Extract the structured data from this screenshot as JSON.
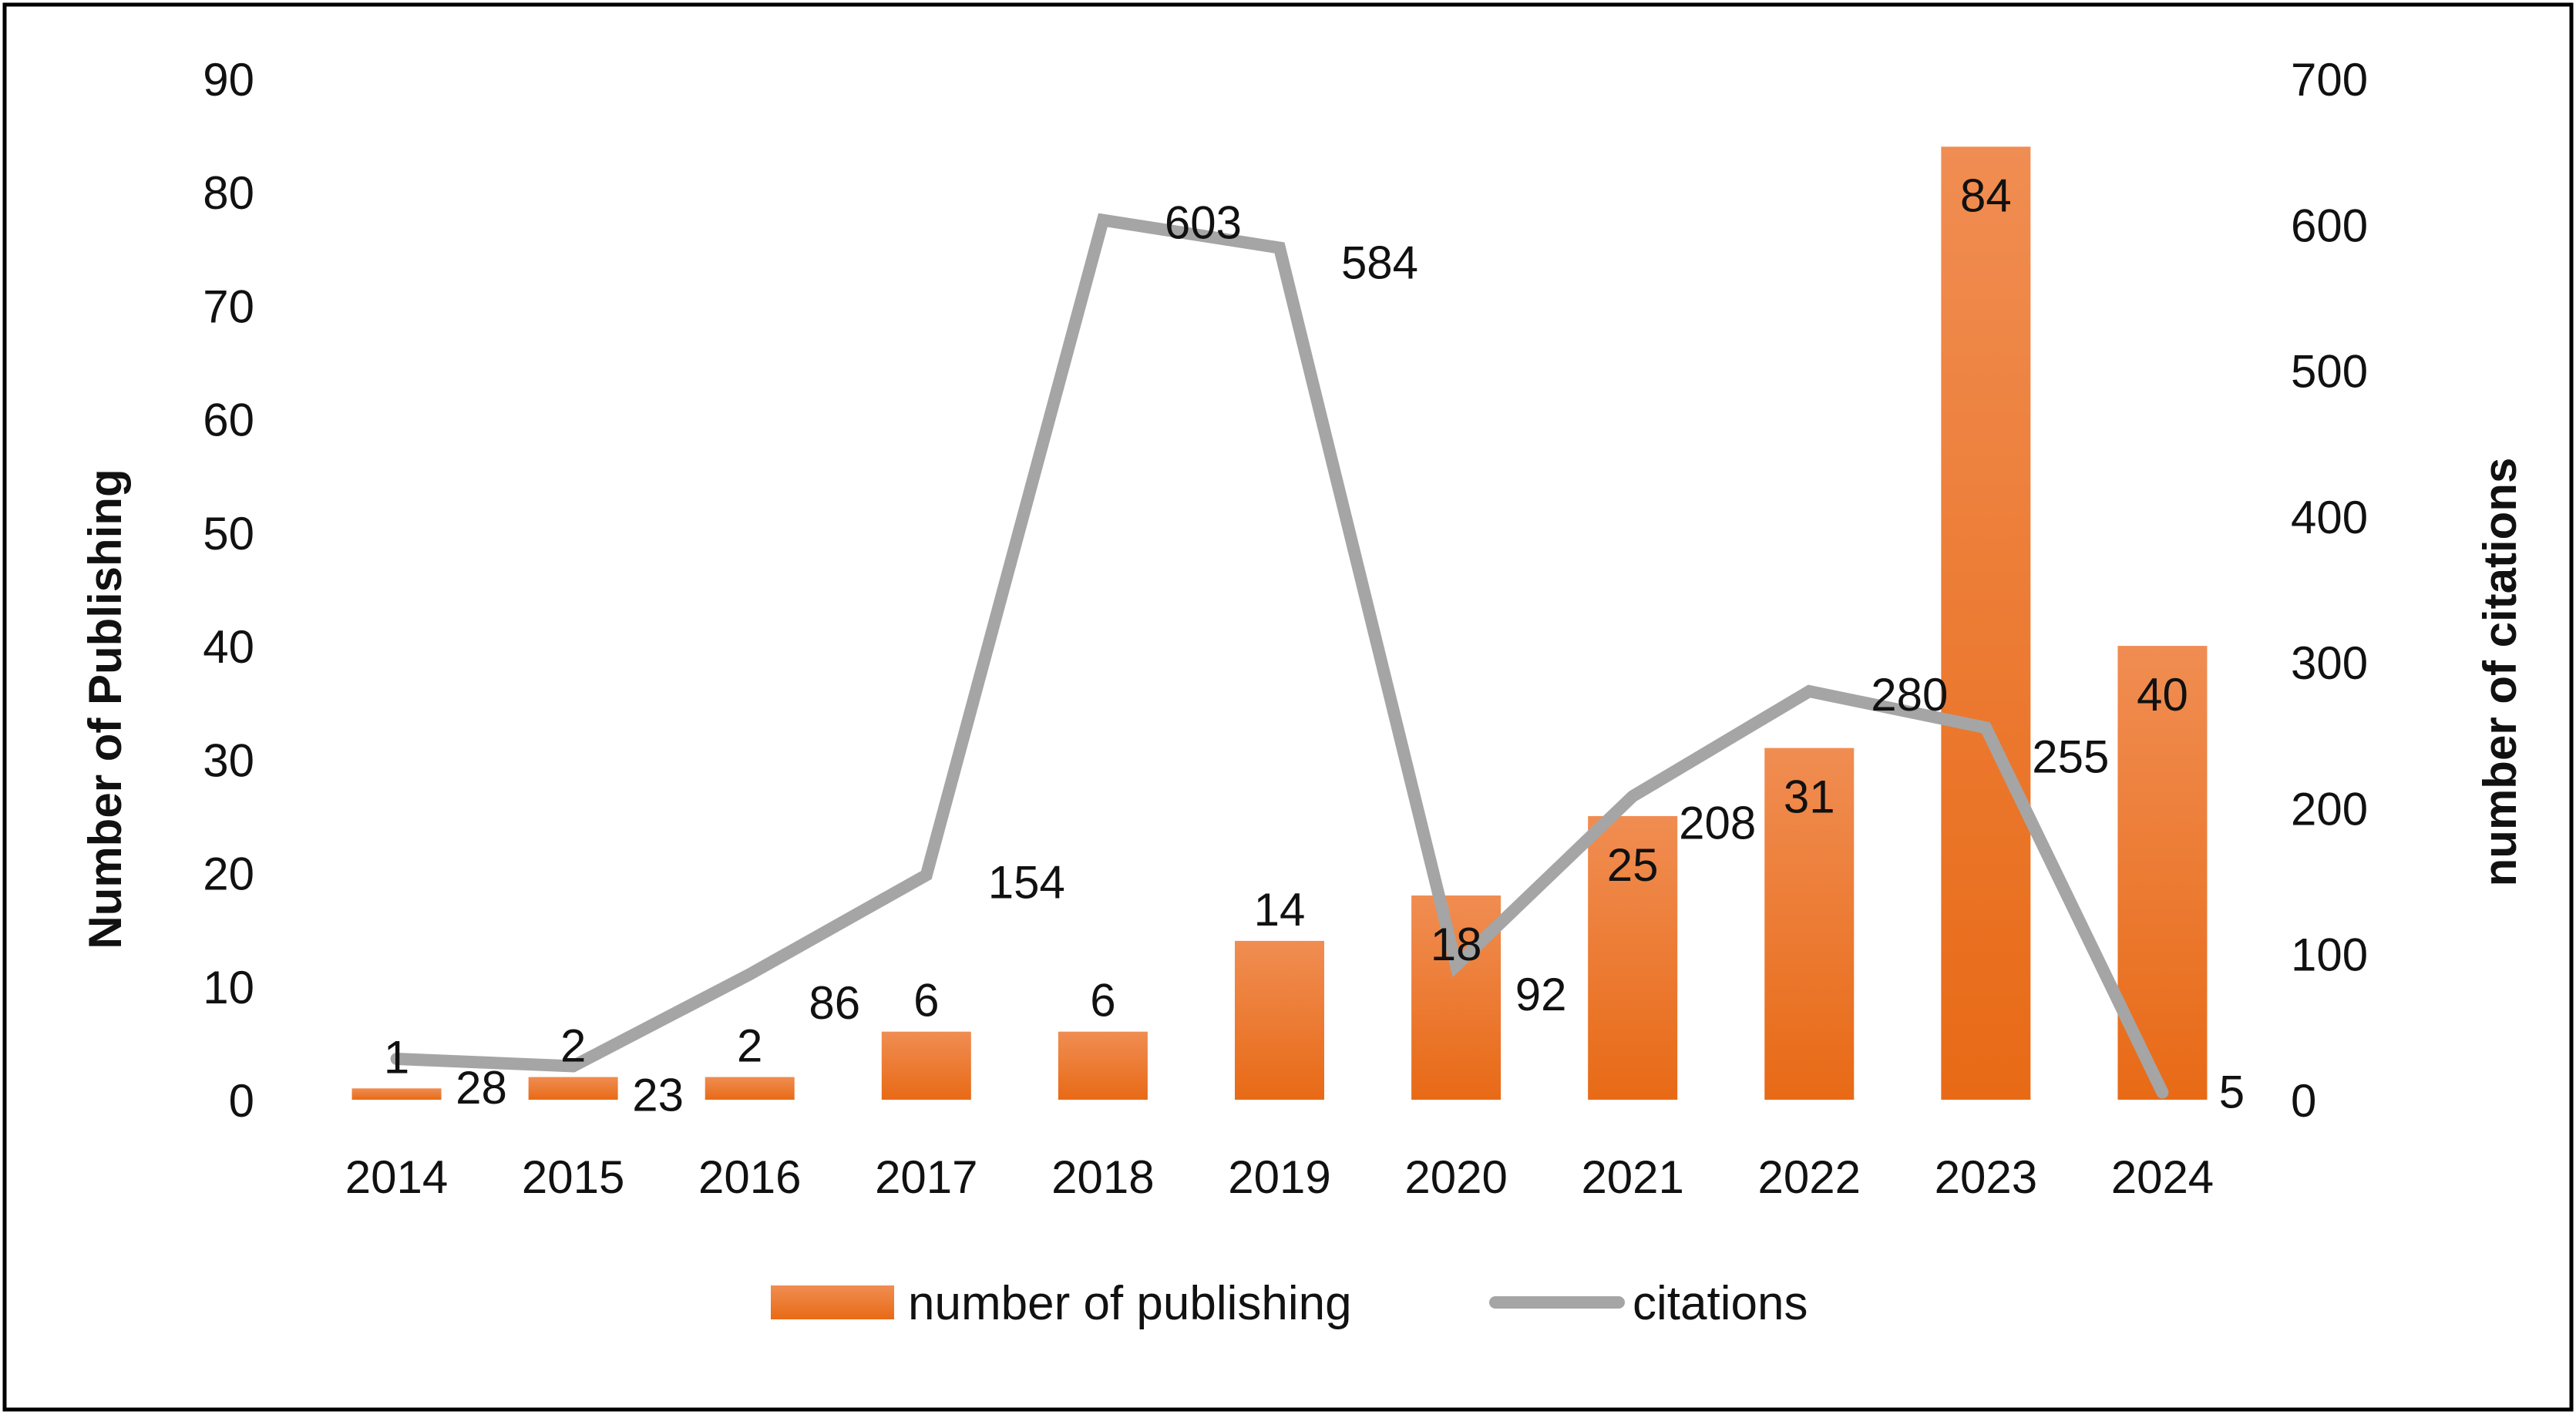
{
  "chart_data": {
    "type": "bar+line",
    "categories": [
      "2014",
      "2015",
      "2016",
      "2017",
      "2018",
      "2019",
      "2020",
      "2021",
      "2022",
      "2023",
      "2024"
    ],
    "series": [
      {
        "name": "number of publishing",
        "type": "bar",
        "axis": "left",
        "values": [
          1,
          2,
          2,
          6,
          6,
          14,
          18,
          25,
          31,
          84,
          40
        ],
        "color": "#ED7D31"
      },
      {
        "name": "citations",
        "type": "line",
        "axis": "right",
        "values": [
          28,
          23,
          86,
          154,
          603,
          584,
          92,
          208,
          280,
          255,
          5
        ],
        "color": "#A5A5A5"
      }
    ],
    "ylabel": "Number of Publishing",
    "y2label": "number of citations",
    "xlabel": "",
    "ylim": [
      0,
      90
    ],
    "y2lim": [
      0,
      700
    ],
    "yticks": [
      "0",
      "10",
      "20",
      "30",
      "40",
      "50",
      "60",
      "70",
      "80",
      "90"
    ],
    "y2ticks": [
      "0",
      "100",
      "200",
      "300",
      "400",
      "500",
      "600",
      "700"
    ],
    "grid": false,
    "legend_position": "bottom",
    "legend": [
      "number of publishing",
      "citations"
    ]
  }
}
